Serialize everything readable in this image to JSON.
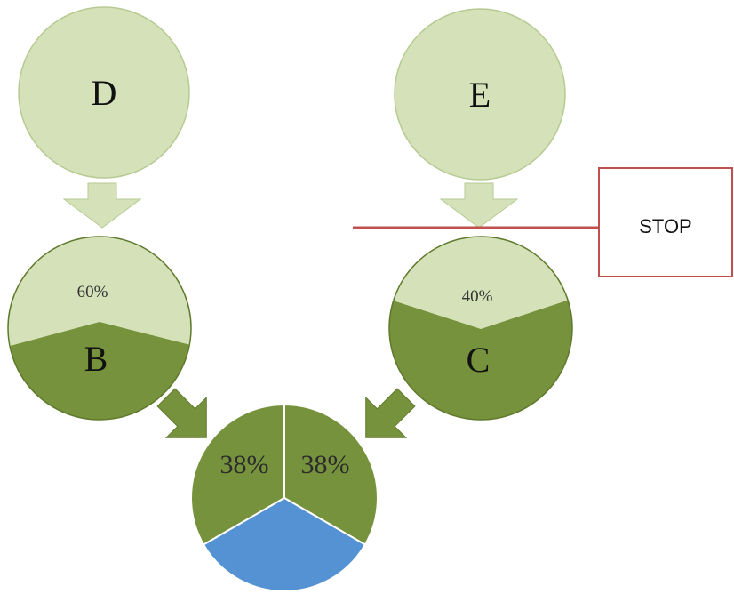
{
  "colors": {
    "light_green": "#d5e2b9",
    "light_green_stroke": "#b7ca92",
    "dark_green": "#76923c",
    "dark_green_stroke": "#5f7a2c",
    "blue": "#5592d3",
    "stop_border": "#c0504d"
  },
  "nodes": {
    "d": {
      "label": "D"
    },
    "e": {
      "label": "E"
    },
    "b": {
      "label": "B",
      "percent": "60%"
    },
    "c": {
      "label": "C",
      "percent": "40%"
    }
  },
  "result": {
    "left_percent": "38%",
    "right_percent": "38%"
  },
  "stop": {
    "label": "STOP"
  }
}
